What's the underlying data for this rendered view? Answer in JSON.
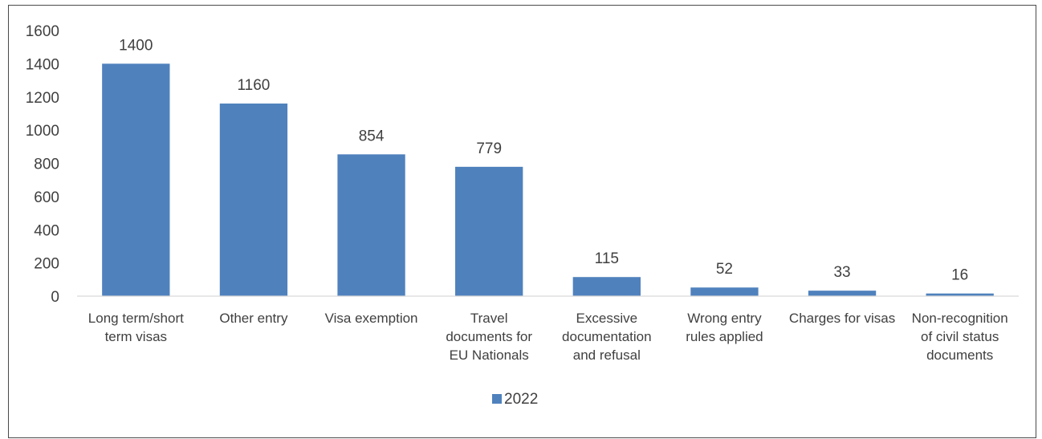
{
  "chart_data": {
    "type": "bar",
    "categories": [
      "Long term/short term visas",
      "Other entry",
      "Visa exemption",
      "Travel documents for EU Nationals",
      "Excessive documentation and refusal",
      "Wrong entry rules applied",
      "Charges for visas",
      "Non-recognition of civil status documents"
    ],
    "category_label_lines": [
      [
        "Long term/short",
        "term visas"
      ],
      [
        "Other entry"
      ],
      [
        "Visa exemption"
      ],
      [
        "Travel",
        "documents for",
        "EU Nationals"
      ],
      [
        "Excessive",
        "documentation",
        "and refusal"
      ],
      [
        "Wrong entry",
        "rules applied"
      ],
      [
        "Charges for visas"
      ],
      [
        "Non-recognition",
        "of civil status",
        "documents"
      ]
    ],
    "series": [
      {
        "name": "2022",
        "values": [
          1400,
          1160,
          854,
          779,
          115,
          52,
          33,
          16
        ],
        "color": "#4f81bd"
      }
    ],
    "data_labels": [
      "1400",
      "1160",
      "854",
      "779",
      "115",
      "52",
      "33",
      "16"
    ],
    "y_ticks": [
      "0",
      "200",
      "400",
      "600",
      "800",
      "1000",
      "1200",
      "1400",
      "1600"
    ],
    "ylim": [
      0,
      1600
    ],
    "grid": false,
    "legend_position": "bottom",
    "title": "",
    "xlabel": "",
    "ylabel": ""
  }
}
